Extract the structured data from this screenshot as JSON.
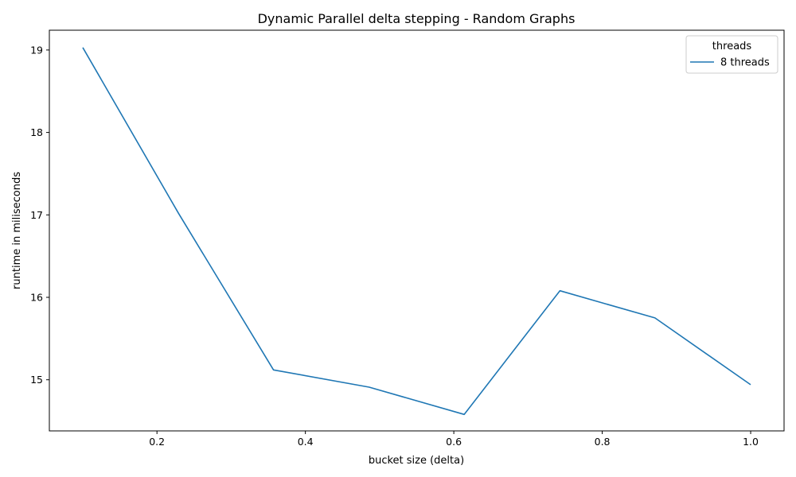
{
  "chart_data": {
    "type": "line",
    "title": "Dynamic Parallel delta stepping - Random Graphs",
    "xlabel": "bucket size (delta)",
    "ylabel": "runtime in miliseconds",
    "xlim": [
      0.055,
      1.045
    ],
    "ylim": [
      14.38,
      19.24
    ],
    "xticks": [
      0.2,
      0.4,
      0.6,
      0.8,
      1.0
    ],
    "xtick_labels": [
      "0.2",
      "0.4",
      "0.6",
      "0.8",
      "1.0"
    ],
    "yticks": [
      15,
      16,
      17,
      18,
      19
    ],
    "ytick_labels": [
      "15",
      "16",
      "17",
      "18",
      "19"
    ],
    "grid": false,
    "legend": {
      "title": "threads",
      "placement": "top-right"
    },
    "series": [
      {
        "name": "8 threads",
        "color": "#1f77b4",
        "x": [
          0.1,
          0.229,
          0.357,
          0.486,
          0.614,
          0.743,
          0.871,
          1.0
        ],
        "y": [
          19.03,
          17.02,
          15.12,
          14.91,
          14.58,
          16.08,
          15.75,
          14.94
        ]
      }
    ]
  }
}
